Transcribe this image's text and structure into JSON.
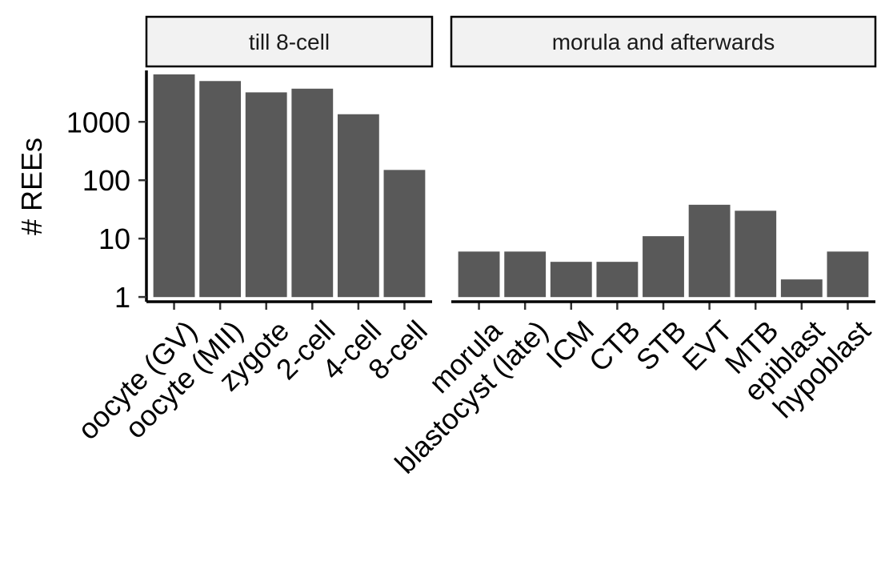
{
  "chart_data": [
    {
      "type": "bar",
      "panel": "till 8-cell",
      "categories": [
        "oocyte (GV)",
        "oocyte (MII)",
        "zygote",
        "2-cell",
        "4-cell",
        "8-cell"
      ],
      "values": [
        6500,
        5000,
        3200,
        3700,
        1350,
        150
      ],
      "ylabel": "# REEs",
      "yscale": "log10",
      "ylim": [
        0.83,
        7600
      ],
      "yticks": [
        1,
        10,
        100,
        1000
      ],
      "ytick_labels": [
        "1",
        "10",
        "100",
        "1000"
      ],
      "bar_color": "#595959"
    },
    {
      "type": "bar",
      "panel": "morula and afterwards",
      "categories": [
        "morula",
        "blastocyst (late)",
        "ICM",
        "CTB",
        "STB",
        "EVT",
        "MTB",
        "epiblast",
        "hypoblast"
      ],
      "values": [
        6,
        6,
        4,
        4,
        11,
        38,
        30,
        2,
        6
      ],
      "yscale": "log10",
      "ylim": [
        0.83,
        7600
      ],
      "bar_color": "#595959"
    }
  ],
  "strip_fill": "#f2f2f2"
}
